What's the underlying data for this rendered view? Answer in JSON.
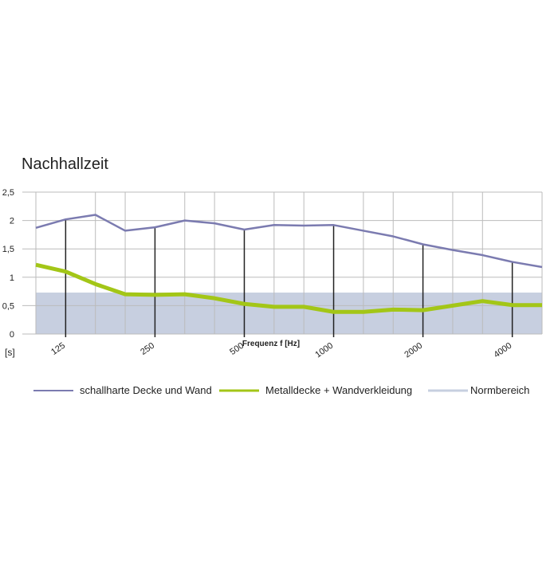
{
  "chart_data": {
    "type": "line",
    "title": "Nachhallzeit",
    "y_label": "[s]",
    "x_label": "Frequenz f [Hz]",
    "categories": [
      null,
      "125",
      null,
      null,
      "250",
      null,
      null,
      "500",
      null,
      null,
      "1000",
      null,
      null,
      "2000",
      null,
      null,
      "4000",
      null
    ],
    "series": [
      {
        "name": "schallharte Decke und Wand",
        "color": "#7b7bb0",
        "values": [
          1.87,
          2.02,
          2.1,
          1.82,
          1.88,
          2.0,
          1.95,
          1.84,
          1.92,
          1.91,
          1.92,
          1.82,
          1.72,
          1.58,
          1.48,
          1.39,
          1.27,
          1.18
        ]
      },
      {
        "name": "Metalldecke + Wandverkleidung",
        "color": "#a3c617",
        "values": [
          1.22,
          1.1,
          0.88,
          0.7,
          0.69,
          0.7,
          0.63,
          0.53,
          0.48,
          0.48,
          0.39,
          0.39,
          0.43,
          0.42,
          0.5,
          0.58,
          0.51,
          0.51
        ]
      }
    ],
    "norm_band": {
      "name": "Normbereich",
      "color": "#c7cfe0",
      "range": [
        0,
        0.73
      ]
    },
    "ylim": [
      0,
      2.5
    ],
    "yticks": [
      0,
      {
        "value": 0.5,
        "label": "0,5"
      },
      1,
      {
        "value": 1.5,
        "label": "1,5"
      },
      2,
      {
        "value": 2.5,
        "label": "2,5"
      }
    ],
    "grid": true
  }
}
